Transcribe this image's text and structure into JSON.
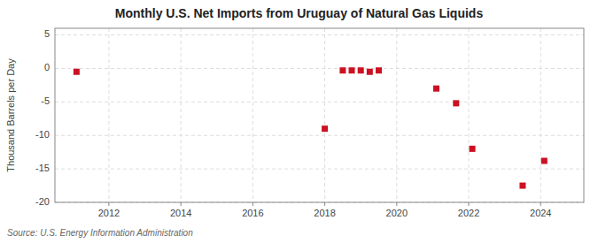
{
  "chart_data": {
    "type": "scatter",
    "title": "Monthly U.S. Net Imports from Uruguay of Natural Gas Liquids",
    "ylabel": "Thousand Barrels per Day",
    "source": "Source: U.S. Energy Information Administration",
    "x": [
      2011.1,
      2018.0,
      2018.5,
      2018.75,
      2019.0,
      2019.25,
      2019.5,
      2021.1,
      2021.65,
      2022.1,
      2023.5,
      2024.1
    ],
    "values": [
      -0.5,
      -9.0,
      -0.3,
      -0.3,
      -0.3,
      -0.5,
      -0.3,
      -3.0,
      -5.2,
      -12.0,
      -17.5,
      -13.8
    ],
    "color": "#cc1122",
    "marker": "square",
    "xlim": [
      2010.5,
      2025.2
    ],
    "xticks": [
      2012,
      2014,
      2016,
      2018,
      2020,
      2022,
      2024
    ],
    "ylim": [
      -20,
      6
    ],
    "yticks": [
      -20,
      -15,
      -10,
      -5,
      0,
      5
    ],
    "grid": true
  }
}
